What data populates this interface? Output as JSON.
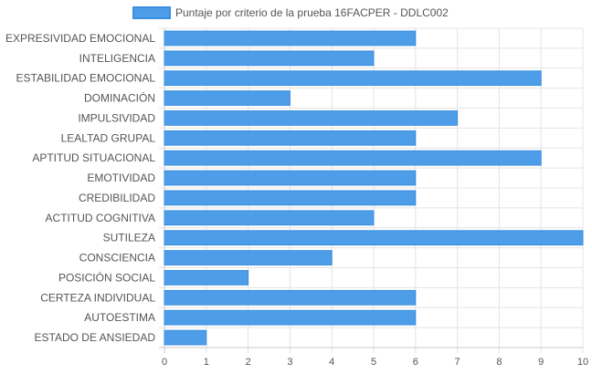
{
  "chart_data": {
    "type": "bar",
    "orientation": "horizontal",
    "categories": [
      "EXPRESIVIDAD EMOCIONAL",
      "INTELIGENCIA",
      "ESTABILIDAD EMOCIONAL",
      "DOMINACIÓN",
      "IMPULSIVIDAD",
      "LEALTAD GRUPAL",
      "APTITUD SITUACIONAL",
      "EMOTIVIDAD",
      "CREDIBILIDAD",
      "ACTITUD COGNITIVA",
      "SUTILEZA",
      "CONSCIENCIA",
      "POSICIÓN SOCIAL",
      "CERTEZA INDIVIDUAL",
      "AUTOESTIMA",
      "ESTADO DE ANSIEDAD"
    ],
    "series": [
      {
        "name": "Puntaje por criterio de la prueba 16FACPER - DDLC002",
        "values": [
          6,
          5,
          9,
          3,
          7,
          6,
          9,
          6,
          6,
          5,
          10,
          4,
          2,
          6,
          6,
          1
        ],
        "color": "#4d9de8",
        "border_color": "#3a8ee0"
      }
    ],
    "xlim": [
      0,
      10
    ],
    "x_ticks": [
      "0",
      "1",
      "2",
      "3",
      "4",
      "5",
      "6",
      "7",
      "8",
      "9",
      "10"
    ],
    "grid": true,
    "legend_position": "top"
  }
}
